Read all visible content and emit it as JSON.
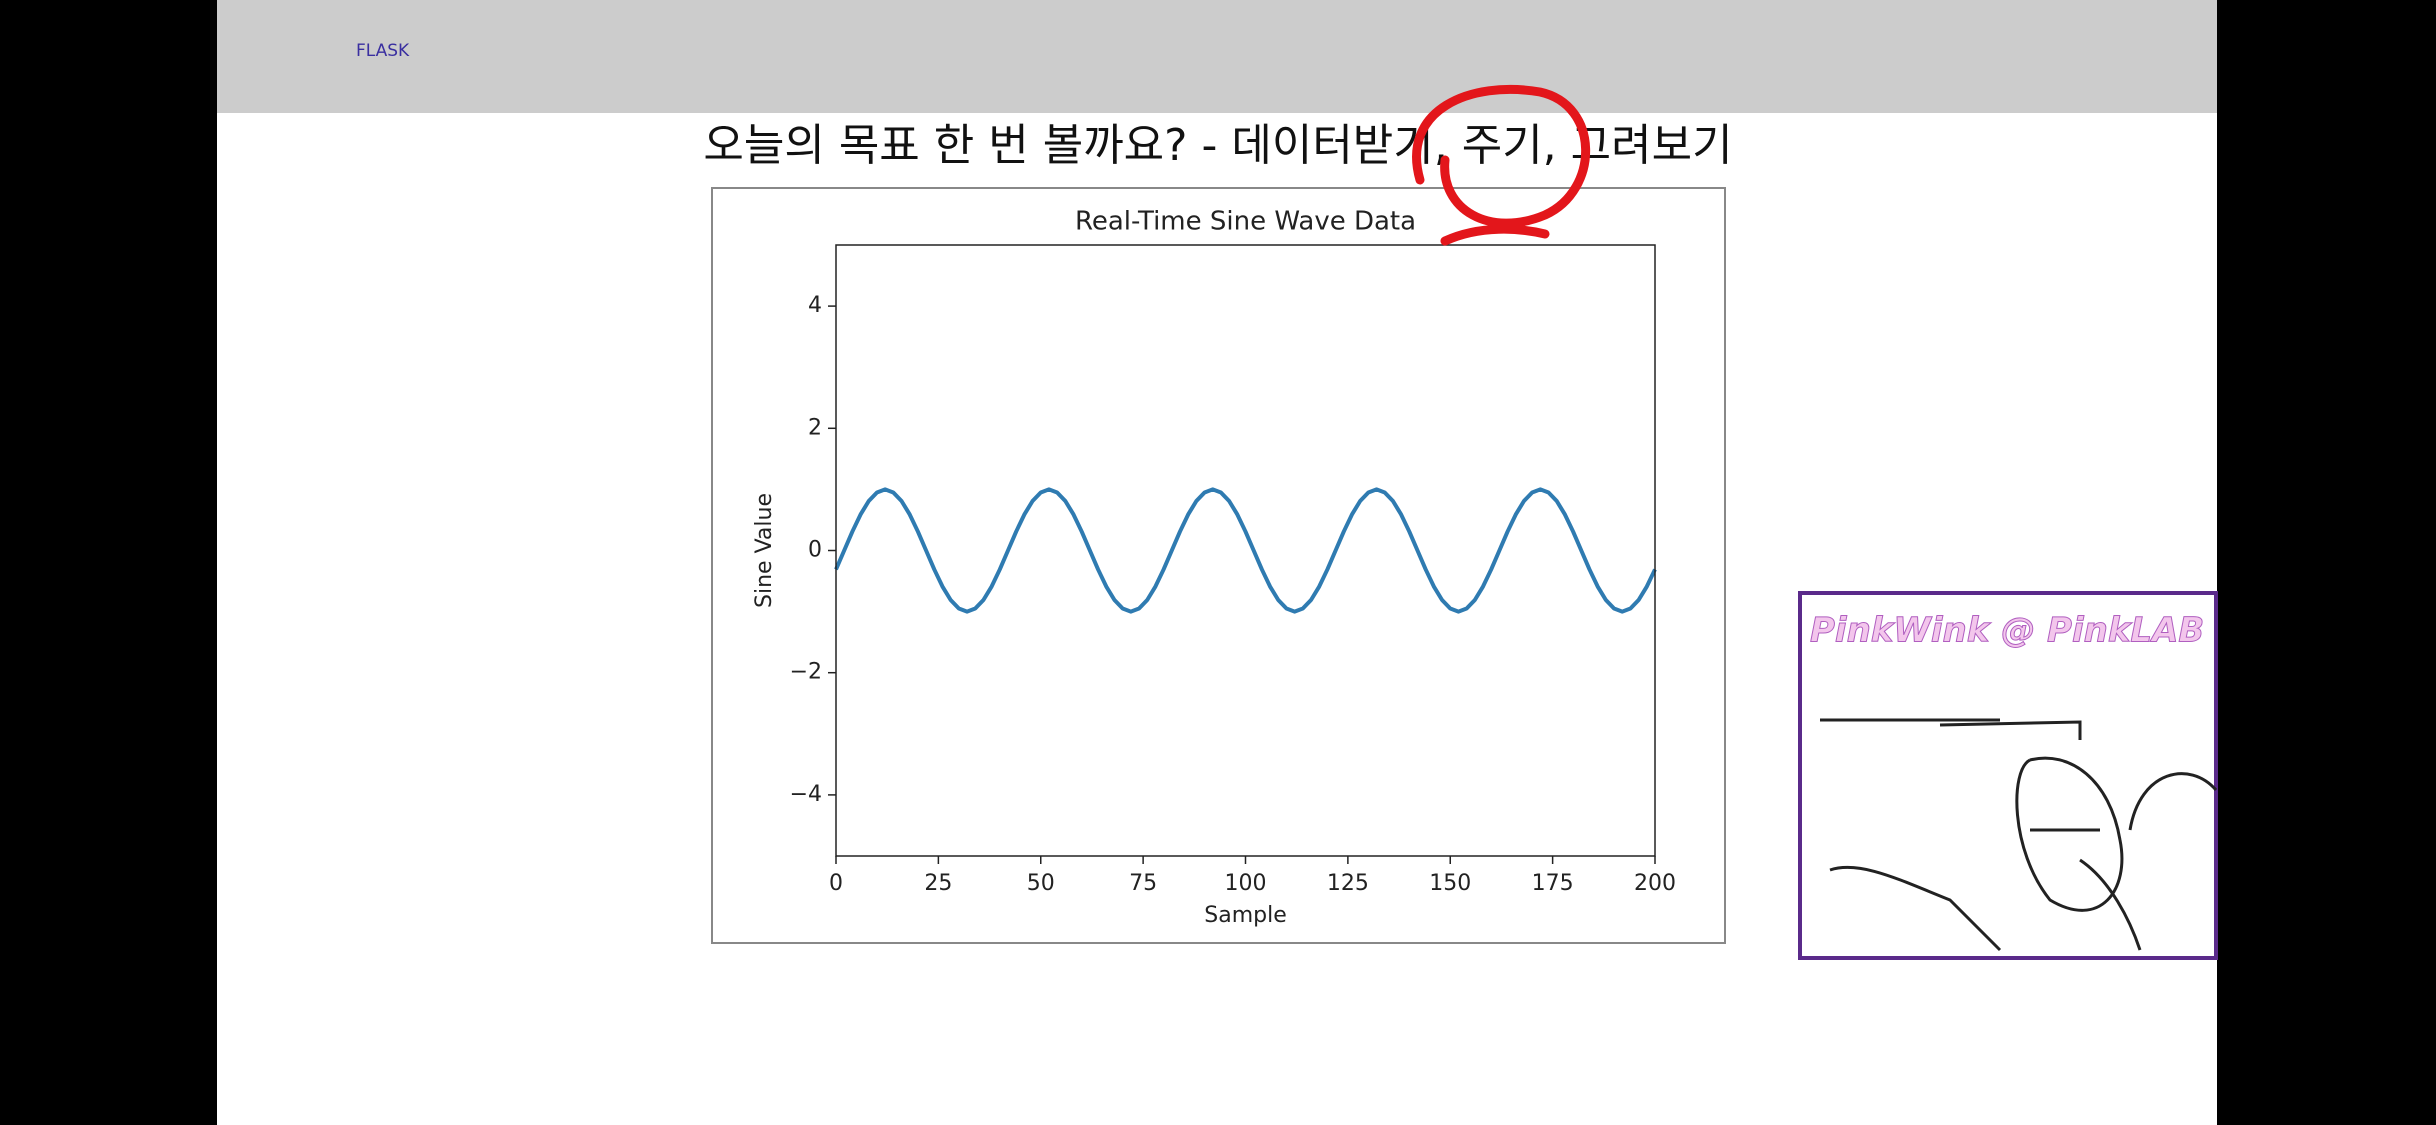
{
  "header": {
    "brand": "FLASK"
  },
  "slide_title": "오늘의 목표 한 번 볼까요? - 데이터받기, 주기, 그려보기",
  "webcam_caption": "PinkWink @  PinkLAB",
  "chart_data": {
    "type": "line",
    "title": "Real-Time Sine Wave Data",
    "x_label": "Sample",
    "y_label": "Sine Value",
    "x": [
      0,
      2,
      4,
      6,
      8,
      10,
      12,
      14,
      16,
      18,
      20,
      22,
      24,
      26,
      28,
      30,
      32,
      34,
      36,
      38,
      40,
      42,
      44,
      46,
      48,
      50,
      52,
      54,
      56,
      58,
      60,
      62,
      64,
      66,
      68,
      70,
      72,
      74,
      76,
      78,
      80,
      82,
      84,
      86,
      88,
      90,
      92,
      94,
      96,
      98,
      100,
      102,
      104,
      106,
      108,
      110,
      112,
      114,
      116,
      118,
      120,
      122,
      124,
      126,
      128,
      130,
      132,
      134,
      136,
      138,
      140,
      142,
      144,
      146,
      148,
      150,
      152,
      154,
      156,
      158,
      160,
      162,
      164,
      166,
      168,
      170,
      172,
      174,
      176,
      178,
      180,
      182,
      184,
      186,
      188,
      190,
      192,
      194,
      196,
      198,
      200
    ],
    "series": [
      {
        "color": "#2f7bb1",
        "values": [
          -0.31,
          0,
          0.31,
          0.59,
          0.81,
          0.95,
          1,
          0.95,
          0.81,
          0.59,
          0.31,
          0,
          -0.31,
          -0.59,
          -0.81,
          -0.95,
          -1,
          -0.95,
          -0.81,
          -0.59,
          -0.31,
          0,
          0.31,
          0.59,
          0.81,
          0.95,
          1,
          0.95,
          0.81,
          0.59,
          0.31,
          0,
          -0.31,
          -0.59,
          -0.81,
          -0.95,
          -1,
          -0.95,
          -0.81,
          -0.59,
          -0.31,
          0,
          0.31,
          0.59,
          0.81,
          0.95,
          1,
          0.95,
          0.81,
          0.59,
          0.31,
          0,
          -0.31,
          -0.59,
          -0.81,
          -0.95,
          -1,
          -0.95,
          -0.81,
          -0.59,
          -0.31,
          0,
          0.31,
          0.59,
          0.81,
          0.95,
          1,
          0.95,
          0.81,
          0.59,
          0.31,
          0,
          -0.31,
          -0.59,
          -0.81,
          -0.95,
          -1,
          -0.95,
          -0.81,
          -0.59,
          -0.31,
          0,
          0.31,
          0.59,
          0.81,
          0.95,
          1,
          0.95,
          0.81,
          0.59,
          0.31,
          0,
          -0.31,
          -0.59,
          -0.81,
          -0.95,
          -1,
          -0.95,
          -0.81,
          -0.59,
          -0.31
        ]
      }
    ],
    "xlim": [
      0,
      200
    ],
    "ylim": [
      -5,
      5
    ],
    "xticks": [
      0,
      25,
      50,
      75,
      100,
      125,
      150,
      175,
      200
    ],
    "yticks": [
      {
        "value": -4,
        "label": "−4"
      },
      {
        "value": -2,
        "label": "−2"
      },
      0,
      2,
      4
    ]
  }
}
